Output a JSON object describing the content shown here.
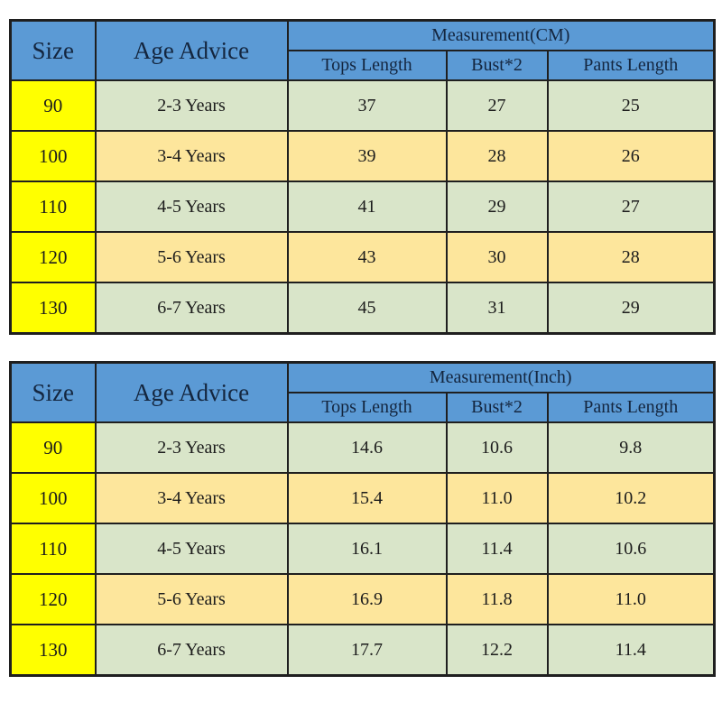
{
  "colors": {
    "header_blue": "#5b9ad5",
    "size_yellow": "#ffff00",
    "row_green": "#d9e5c9",
    "row_tan": "#fde69c",
    "border_dark": "#1f1f1f",
    "header_text": "#14263f",
    "body_text": "#1c1c1c"
  },
  "chart_data": [
    {
      "type": "table",
      "title": "Measurement(CM)",
      "columns": [
        "Size",
        "Age Advice",
        "Tops Length",
        "Bust*2",
        "Pants Length"
      ],
      "rows": [
        [
          "90",
          "2-3 Years",
          37,
          27,
          25
        ],
        [
          "100",
          "3-4 Years",
          39,
          28,
          26
        ],
        [
          "110",
          "4-5 Years",
          41,
          29,
          27
        ],
        [
          "120",
          "5-6 Years",
          43,
          30,
          28
        ],
        [
          "130",
          "6-7 Years",
          45,
          31,
          29
        ]
      ]
    },
    {
      "type": "table",
      "title": "Measurement(Inch)",
      "columns": [
        "Size",
        "Age Advice",
        "Tops Length",
        "Bust*2",
        "Pants Length"
      ],
      "rows": [
        [
          "90",
          "2-3 Years",
          14.6,
          10.6,
          9.8
        ],
        [
          "100",
          "3-4 Years",
          15.4,
          11.0,
          10.2
        ],
        [
          "110",
          "4-5 Years",
          16.1,
          11.4,
          10.6
        ],
        [
          "120",
          "5-6 Years",
          16.9,
          11.8,
          11.0
        ],
        [
          "130",
          "6-7 Years",
          17.7,
          12.2,
          11.4
        ]
      ]
    }
  ],
  "tables": [
    {
      "header": {
        "size": "Size",
        "age": "Age Advice",
        "measurement": "Measurement(CM)",
        "columns": [
          "Tops Length",
          "Bust*2",
          "Pants Length"
        ]
      },
      "rows": [
        {
          "size": "90",
          "age": "2-3 Years",
          "values": [
            "37",
            "27",
            "25"
          ]
        },
        {
          "size": "100",
          "age": "3-4 Years",
          "values": [
            "39",
            "28",
            "26"
          ]
        },
        {
          "size": "110",
          "age": "4-5 Years",
          "values": [
            "41",
            "29",
            "27"
          ]
        },
        {
          "size": "120",
          "age": "5-6 Years",
          "values": [
            "43",
            "30",
            "28"
          ]
        },
        {
          "size": "130",
          "age": "6-7 Years",
          "values": [
            "45",
            "31",
            "29"
          ]
        }
      ]
    },
    {
      "header": {
        "size": "Size",
        "age": "Age Advice",
        "measurement": "Measurement(Inch)",
        "columns": [
          "Tops Length",
          "Bust*2",
          "Pants Length"
        ]
      },
      "rows": [
        {
          "size": "90",
          "age": "2-3 Years",
          "values": [
            "14.6",
            "10.6",
            "9.8"
          ]
        },
        {
          "size": "100",
          "age": "3-4 Years",
          "values": [
            "15.4",
            "11.0",
            "10.2"
          ]
        },
        {
          "size": "110",
          "age": "4-5 Years",
          "values": [
            "16.1",
            "11.4",
            "10.6"
          ]
        },
        {
          "size": "120",
          "age": "5-6 Years",
          "values": [
            "16.9",
            "11.8",
            "11.0"
          ]
        },
        {
          "size": "130",
          "age": "6-7 Years",
          "values": [
            "17.7",
            "12.2",
            "11.4"
          ]
        }
      ]
    }
  ]
}
